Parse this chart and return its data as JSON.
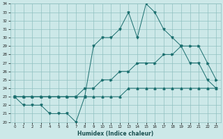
{
  "xlabel": "Humidex (Indice chaleur)",
  "bg_color": "#cce8e8",
  "grid_color": "#90c0c0",
  "line_color": "#1a6e6e",
  "ylim": [
    20,
    34
  ],
  "xlim": [
    -0.5,
    23.5
  ],
  "yticks": [
    20,
    21,
    22,
    23,
    24,
    25,
    26,
    27,
    28,
    29,
    30,
    31,
    32,
    33,
    34
  ],
  "xticks": [
    0,
    1,
    2,
    3,
    4,
    5,
    6,
    7,
    8,
    9,
    10,
    11,
    12,
    13,
    14,
    15,
    16,
    17,
    18,
    19,
    20,
    21,
    22,
    23
  ],
  "line1_x": [
    0,
    1,
    2,
    3,
    4,
    5,
    6,
    7,
    8,
    9,
    10,
    11,
    12,
    13,
    14,
    15,
    16,
    17,
    18,
    19,
    20,
    21,
    22,
    23
  ],
  "line1_y": [
    23,
    22,
    22,
    22,
    21,
    21,
    21,
    20,
    23,
    29,
    30,
    30,
    31,
    33,
    30,
    34,
    33,
    31,
    30,
    29,
    27,
    27,
    25,
    24
  ],
  "line2_x": [
    0,
    1,
    2,
    3,
    4,
    5,
    6,
    7,
    8,
    9,
    10,
    11,
    12,
    13,
    14,
    15,
    16,
    17,
    18,
    19,
    20,
    21,
    22,
    23
  ],
  "line2_y": [
    23,
    23,
    23,
    23,
    23,
    23,
    23,
    23,
    24,
    24,
    25,
    25,
    26,
    26,
    27,
    27,
    27,
    28,
    28,
    29,
    29,
    29,
    27,
    25
  ],
  "line3_x": [
    0,
    1,
    2,
    3,
    4,
    5,
    6,
    7,
    8,
    9,
    10,
    11,
    12,
    13,
    14,
    15,
    16,
    17,
    18,
    19,
    20,
    21,
    22,
    23
  ],
  "line3_y": [
    23,
    23,
    23,
    23,
    23,
    23,
    23,
    23,
    23,
    23,
    23,
    23,
    23,
    24,
    24,
    24,
    24,
    24,
    24,
    24,
    24,
    24,
    24,
    24
  ]
}
